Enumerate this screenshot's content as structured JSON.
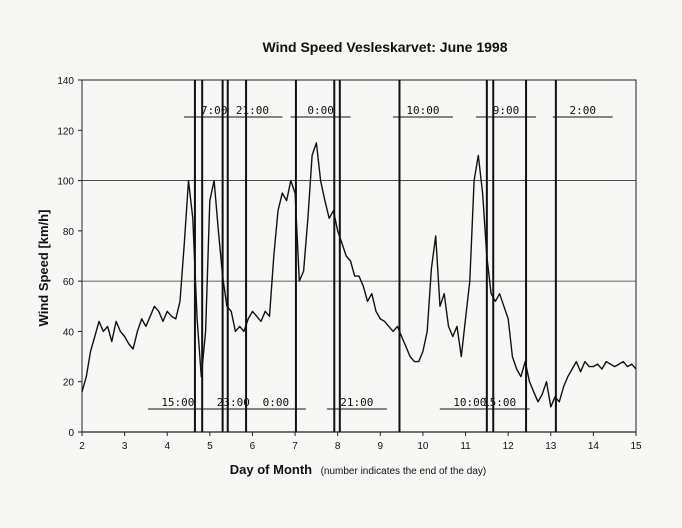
{
  "chart_data": {
    "type": "line",
    "title": "Wind Speed Vesleskarvet: June 1998",
    "xlabel": "Day of Month",
    "xlabel_note": "(number indicates the end of the day)",
    "ylabel": "Wind Speed [km/h]",
    "xlim": [
      2,
      15
    ],
    "ylim": [
      0,
      140
    ],
    "x_ticks": [
      "2",
      "3",
      "4",
      "5",
      "6",
      "7",
      "8",
      "9",
      "10",
      "11",
      "12",
      "13",
      "14",
      "15"
    ],
    "y_ticks": [
      "0",
      "20",
      "40",
      "60",
      "80",
      "100",
      "120",
      "140"
    ],
    "grid": "horizontal lines at 0, 60, 100",
    "series": [
      {
        "x": [
          2.0,
          2.1,
          2.2,
          2.3,
          2.4,
          2.5,
          2.6,
          2.7,
          2.8,
          2.9,
          3.0,
          3.1,
          3.2,
          3.3,
          3.4,
          3.5,
          3.6,
          3.7,
          3.8,
          3.9,
          4.0,
          4.1,
          4.2,
          4.3,
          4.4,
          4.5,
          4.6,
          4.7,
          4.8,
          4.9,
          5.0,
          5.1,
          5.2,
          5.3,
          5.4,
          5.5,
          5.6,
          5.7,
          5.8,
          5.9,
          6.0,
          6.1,
          6.2,
          6.3,
          6.4,
          6.5,
          6.6,
          6.7,
          6.8,
          6.9,
          7.0,
          7.1,
          7.2,
          7.3,
          7.4,
          7.5,
          7.6,
          7.7,
          7.8,
          7.9,
          8.0,
          8.1,
          8.2,
          8.3,
          8.4,
          8.5,
          8.6,
          8.7,
          8.8,
          8.9,
          9.0,
          9.1,
          9.2,
          9.3,
          9.4,
          9.5,
          9.6,
          9.7,
          9.8,
          9.9,
          10.0,
          10.1,
          10.2,
          10.3,
          10.4,
          10.5,
          10.6,
          10.7,
          10.8,
          10.9,
          11.0,
          11.1,
          11.2,
          11.3,
          11.4,
          11.5,
          11.6,
          11.7,
          11.8,
          11.9,
          12.0,
          12.1,
          12.2,
          12.3,
          12.4,
          12.5,
          12.6,
          12.7,
          12.8,
          12.9,
          13.0,
          13.1,
          13.2,
          13.3,
          13.4,
          13.5,
          13.6,
          13.7,
          13.8,
          13.9,
          14.0,
          14.1,
          14.2,
          14.3,
          14.4,
          14.5,
          14.6,
          14.7,
          14.8,
          14.9,
          15.0
        ],
        "y": [
          16,
          22,
          32,
          38,
          44,
          40,
          42,
          36,
          44,
          40,
          38,
          35,
          33,
          40,
          45,
          42,
          46,
          50,
          48,
          44,
          48,
          46,
          45,
          52,
          75,
          100,
          85,
          45,
          22,
          40,
          92,
          100,
          80,
          62,
          50,
          48,
          40,
          42,
          40,
          45,
          48,
          46,
          44,
          48,
          46,
          70,
          88,
          95,
          92,
          100,
          95,
          60,
          64,
          85,
          110,
          115,
          100,
          92,
          85,
          88,
          80,
          75,
          70,
          68,
          62,
          62,
          58,
          52,
          55,
          48,
          45,
          44,
          42,
          40,
          42,
          38,
          34,
          30,
          28,
          28,
          32,
          40,
          65,
          78,
          50,
          55,
          42,
          38,
          42,
          30,
          45,
          60,
          100,
          110,
          95,
          70,
          55,
          52,
          55,
          50,
          45,
          30,
          25,
          22,
          28,
          20,
          16,
          12,
          15,
          20,
          10,
          14,
          12,
          18,
          22,
          25,
          28,
          24,
          28,
          26,
          26,
          27,
          25,
          28,
          27,
          26,
          27,
          28,
          26,
          27,
          25
        ]
      }
    ],
    "event_lines": [
      {
        "label": "7:00",
        "position": "top"
      },
      {
        "label": "21:00",
        "position": "top"
      },
      {
        "label": "0:00",
        "position": "top"
      },
      {
        "label": "10:00",
        "position": "top"
      },
      {
        "label": "9:00",
        "position": "top"
      },
      {
        "label": "2:00",
        "position": "top"
      },
      {
        "label": "15:00",
        "position": "bottom"
      },
      {
        "label": "23:00",
        "position": "bottom"
      },
      {
        "label": "0:00",
        "position": "bottom"
      },
      {
        "label": "21:00",
        "position": "bottom"
      },
      {
        "label": "10:00",
        "position": "bottom"
      },
      {
        "label": "15:00",
        "position": "bottom"
      }
    ]
  }
}
